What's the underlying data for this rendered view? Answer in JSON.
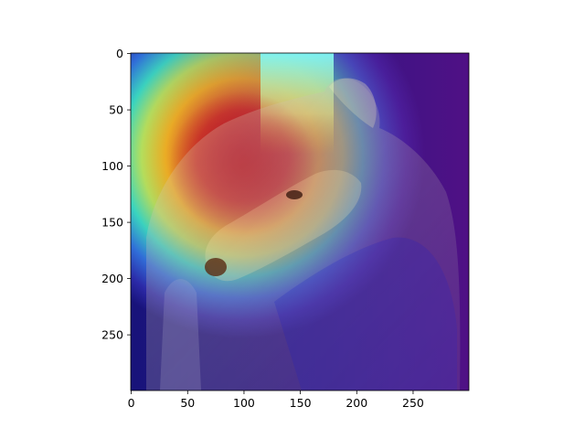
{
  "figure": {
    "x_axis": {
      "range": [
        0,
        299
      ],
      "ticks": [
        {
          "value": 0,
          "label": "0"
        },
        {
          "value": 50,
          "label": "50"
        },
        {
          "value": 100,
          "label": "100"
        },
        {
          "value": 150,
          "label": "150"
        },
        {
          "value": 200,
          "label": "200"
        },
        {
          "value": 250,
          "label": "250"
        }
      ]
    },
    "y_axis": {
      "range": [
        0,
        299
      ],
      "inverted": true,
      "ticks": [
        {
          "value": 0,
          "label": "0"
        },
        {
          "value": 50,
          "label": "50"
        },
        {
          "value": 100,
          "label": "100"
        },
        {
          "value": 150,
          "label": "150"
        },
        {
          "value": 200,
          "label": "200"
        },
        {
          "value": 250,
          "label": "250"
        }
      ]
    },
    "image": {
      "subject": "dog-head-with-heatmap-overlay",
      "colormap": "jet",
      "colors": {
        "background_outer": "#1a1a8c",
        "hot": "#d9211f",
        "warm": "#f2c21a",
        "mid": "#3fd9b0",
        "cool": "#2a3fb5",
        "dog_fur": "#c9b9a3"
      }
    }
  }
}
